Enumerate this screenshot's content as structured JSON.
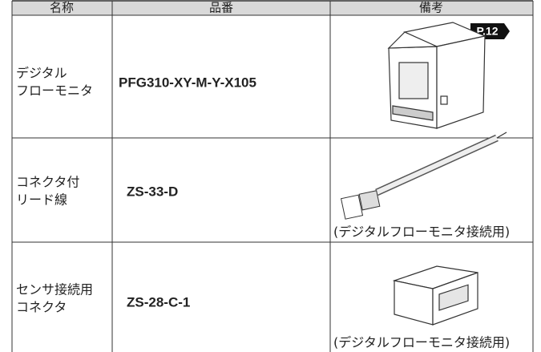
{
  "table": {
    "header": [
      "名称",
      "品番",
      "備考"
    ],
    "rows": [
      {
        "name": [
          "デジタル",
          "フローモニタ"
        ],
        "part": "PFG310-XY-M-Y-X105",
        "page_ref": "P.12"
      },
      {
        "name": [
          "コネクタ付",
          "リード線"
        ],
        "part": "ZS-33-D",
        "note": "(デジタルフローモニタ接続用)"
      },
      {
        "name": [
          "センサ接続用",
          "コネクタ"
        ],
        "part": "ZS-28-C-1",
        "note": "(デジタルフローモニタ接続用)"
      }
    ]
  }
}
